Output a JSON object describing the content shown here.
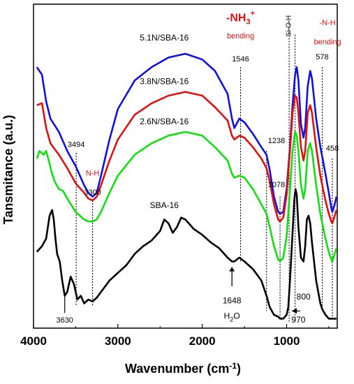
{
  "chart_data": {
    "type": "line",
    "xlabel": "Wavenumber (cm",
    "xlabel_sup": "-1",
    "xlabel_close": ")",
    "ylabel": "Tansmitance (a.u.)",
    "xlim": [
      4000,
      400
    ],
    "x_reversed": true,
    "x_ticks": [
      "4000",
      "3000",
      "2000",
      "1000"
    ],
    "x_tick_values": [
      4000,
      3000,
      2000,
      1000
    ],
    "colors": {
      "blue": "#1010e0",
      "red": "#e01010",
      "green": "#10e010",
      "black": "#000000",
      "accent": "#e01010"
    },
    "series": [
      {
        "name": "5.1N/SBA-16",
        "color": "#1010e0",
        "points": [
          [
            3960,
            82
          ],
          [
            3900,
            78
          ],
          [
            3850,
            64
          ],
          [
            3800,
            55
          ],
          [
            3700,
            48
          ],
          [
            3600,
            38
          ],
          [
            3500,
            30
          ],
          [
            3400,
            20
          ],
          [
            3350,
            16
          ],
          [
            3300,
            14
          ],
          [
            3250,
            16
          ],
          [
            3200,
            25
          ],
          [
            3100,
            44
          ],
          [
            3000,
            60
          ],
          [
            2800,
            75
          ],
          [
            2600,
            82
          ],
          [
            2400,
            87
          ],
          [
            2200,
            89
          ],
          [
            2000,
            86
          ],
          [
            1850,
            80
          ],
          [
            1700,
            68
          ],
          [
            1648,
            55
          ],
          [
            1620,
            50
          ],
          [
            1560,
            55
          ],
          [
            1500,
            53
          ],
          [
            1400,
            47
          ],
          [
            1300,
            40
          ],
          [
            1238,
            36
          ],
          [
            1200,
            28
          ],
          [
            1150,
            14
          ],
          [
            1100,
            6
          ],
          [
            1078,
            5
          ],
          [
            1040,
            6
          ],
          [
            1000,
            18
          ],
          [
            960,
            40
          ],
          [
            930,
            62
          ],
          [
            900,
            78
          ],
          [
            880,
            82
          ],
          [
            860,
            75
          ],
          [
            830,
            52
          ],
          [
            800,
            45
          ],
          [
            780,
            50
          ],
          [
            750,
            72
          ],
          [
            720,
            80
          ],
          [
            700,
            76
          ],
          [
            650,
            55
          ],
          [
            600,
            40
          ],
          [
            578,
            35
          ],
          [
            540,
            26
          ],
          [
            500,
            16
          ],
          [
            470,
            8
          ],
          [
            458,
            6
          ],
          [
            430,
            10
          ],
          [
            410,
            14
          ]
        ]
      },
      {
        "name": "3.8N/SBA-16",
        "color": "#e01010",
        "points": [
          [
            3960,
            62
          ],
          [
            3900,
            63
          ],
          [
            3850,
            50
          ],
          [
            3800,
            42
          ],
          [
            3700,
            36
          ],
          [
            3600,
            29
          ],
          [
            3500,
            21
          ],
          [
            3400,
            16
          ],
          [
            3350,
            13
          ],
          [
            3300,
            12
          ],
          [
            3250,
            14
          ],
          [
            3200,
            20
          ],
          [
            3100,
            33
          ],
          [
            3000,
            44
          ],
          [
            2800,
            57
          ],
          [
            2600,
            63
          ],
          [
            2400,
            67
          ],
          [
            2200,
            69
          ],
          [
            2000,
            67
          ],
          [
            1850,
            61
          ],
          [
            1700,
            54
          ],
          [
            1648,
            46
          ],
          [
            1620,
            44
          ],
          [
            1560,
            46
          ],
          [
            1500,
            45
          ],
          [
            1400,
            40
          ],
          [
            1300,
            34
          ],
          [
            1238,
            29
          ],
          [
            1200,
            22
          ],
          [
            1150,
            10
          ],
          [
            1100,
            2
          ],
          [
            1078,
            1
          ],
          [
            1040,
            3
          ],
          [
            1000,
            15
          ],
          [
            960,
            38
          ],
          [
            930,
            58
          ],
          [
            900,
            67
          ],
          [
            880,
            66
          ],
          [
            860,
            58
          ],
          [
            830,
            40
          ],
          [
            800,
            33
          ],
          [
            780,
            38
          ],
          [
            750,
            58
          ],
          [
            720,
            62
          ],
          [
            700,
            58
          ],
          [
            650,
            40
          ],
          [
            600,
            25
          ],
          [
            578,
            20
          ],
          [
            540,
            12
          ],
          [
            500,
            5
          ],
          [
            470,
            1
          ],
          [
            458,
            0
          ],
          [
            430,
            4
          ],
          [
            410,
            7
          ]
        ]
      },
      {
        "name": "2.6N/SBA-16",
        "color": "#10e010",
        "points": [
          [
            3960,
            34
          ],
          [
            3930,
            38
          ],
          [
            3880,
            36
          ],
          [
            3850,
            38
          ],
          [
            3820,
            33
          ],
          [
            3780,
            26
          ],
          [
            3750,
            22
          ],
          [
            3700,
            18
          ],
          [
            3650,
            17
          ],
          [
            3600,
            13
          ],
          [
            3500,
            6
          ],
          [
            3400,
            2
          ],
          [
            3350,
            1
          ],
          [
            3300,
            1
          ],
          [
            3250,
            2
          ],
          [
            3200,
            6
          ],
          [
            3100,
            16
          ],
          [
            3000,
            25
          ],
          [
            2800,
            36
          ],
          [
            2600,
            42
          ],
          [
            2400,
            46
          ],
          [
            2200,
            48
          ],
          [
            2000,
            46
          ],
          [
            1850,
            40
          ],
          [
            1700,
            33
          ],
          [
            1648,
            26
          ],
          [
            1620,
            24
          ],
          [
            1560,
            25
          ],
          [
            1500,
            24
          ],
          [
            1400,
            18
          ],
          [
            1300,
            10
          ],
          [
            1238,
            5
          ],
          [
            1200,
            -2
          ],
          [
            1150,
            -12
          ],
          [
            1100,
            -19
          ],
          [
            1078,
            -20
          ],
          [
            1040,
            -18
          ],
          [
            1000,
            -7
          ],
          [
            960,
            18
          ],
          [
            930,
            38
          ],
          [
            900,
            48
          ],
          [
            880,
            46
          ],
          [
            860,
            38
          ],
          [
            830,
            20
          ],
          [
            800,
            13
          ],
          [
            780,
            18
          ],
          [
            750,
            38
          ],
          [
            720,
            42
          ],
          [
            700,
            38
          ],
          [
            650,
            20
          ],
          [
            600,
            5
          ],
          [
            578,
            0
          ],
          [
            540,
            -8
          ],
          [
            500,
            -15
          ],
          [
            470,
            -19
          ],
          [
            458,
            -20
          ],
          [
            430,
            -16
          ],
          [
            410,
            -13
          ]
        ]
      },
      {
        "name": "SBA-16",
        "color": "#000000",
        "points": [
          [
            3960,
            -15
          ],
          [
            3900,
            -12
          ],
          [
            3850,
            -8
          ],
          [
            3810,
            4
          ],
          [
            3780,
            7
          ],
          [
            3760,
            2
          ],
          [
            3740,
            -8
          ],
          [
            3720,
            -16
          ],
          [
            3690,
            -20
          ],
          [
            3660,
            -30
          ],
          [
            3630,
            -38
          ],
          [
            3600,
            -36
          ],
          [
            3560,
            -28
          ],
          [
            3520,
            -32
          ],
          [
            3480,
            -40
          ],
          [
            3440,
            -38
          ],
          [
            3400,
            -42
          ],
          [
            3350,
            -40
          ],
          [
            3300,
            -41
          ],
          [
            3250,
            -39
          ],
          [
            3200,
            -36
          ],
          [
            3100,
            -30
          ],
          [
            3000,
            -26
          ],
          [
            2900,
            -22
          ],
          [
            2800,
            -16
          ],
          [
            2700,
            -12
          ],
          [
            2600,
            -9
          ],
          [
            2500,
            -4
          ],
          [
            2450,
            2
          ],
          [
            2400,
            0
          ],
          [
            2350,
            -5
          ],
          [
            2300,
            -2
          ],
          [
            2250,
            3
          ],
          [
            2200,
            2
          ],
          [
            2100,
            -3
          ],
          [
            2000,
            -6
          ],
          [
            1900,
            -10
          ],
          [
            1800,
            -13
          ],
          [
            1700,
            -18
          ],
          [
            1648,
            -20
          ],
          [
            1620,
            -20
          ],
          [
            1560,
            -18
          ],
          [
            1500,
            -20
          ],
          [
            1400,
            -24
          ],
          [
            1300,
            -30
          ],
          [
            1238,
            -38
          ],
          [
            1200,
            -44
          ],
          [
            1150,
            -48
          ],
          [
            1100,
            -49
          ],
          [
            1078,
            -50
          ],
          [
            1040,
            -50
          ],
          [
            1000,
            -48
          ],
          [
            980,
            -44
          ],
          [
            960,
            -30
          ],
          [
            930,
            -5
          ],
          [
            910,
            12
          ],
          [
            895,
            18
          ],
          [
            880,
            15
          ],
          [
            860,
            -2
          ],
          [
            830,
            -18
          ],
          [
            800,
            -20
          ],
          [
            780,
            -12
          ],
          [
            760,
            2
          ],
          [
            740,
            4
          ],
          [
            720,
            0
          ],
          [
            700,
            -10
          ],
          [
            650,
            -30
          ],
          [
            600,
            -42
          ],
          [
            578,
            -45
          ],
          [
            540,
            -48
          ],
          [
            500,
            -50
          ],
          [
            470,
            -50
          ],
          [
            458,
            -50
          ],
          [
            430,
            -50
          ],
          [
            410,
            -50
          ]
        ]
      }
    ],
    "series_labels": [
      {
        "text": "5.1N/SBA-16",
        "x": 2450,
        "y": 96
      },
      {
        "text": "3.8N/SBA-16",
        "x": 2450,
        "y": 73
      },
      {
        "text": "2.6N/SBA-16",
        "x": 2450,
        "y": 52
      },
      {
        "text": "SBA-16",
        "x": 2450,
        "y": 8
      }
    ],
    "ylim": [
      -55,
      115
    ],
    "vlines": [
      {
        "x": 3494,
        "top": 37,
        "bottom": -43
      },
      {
        "x": 3300,
        "top": 12,
        "bottom": -43
      },
      {
        "x": 1546,
        "top": 82,
        "bottom": -20
      },
      {
        "x": 1238,
        "top": 38,
        "bottom": -46
      },
      {
        "x": 1078,
        "top": 14,
        "bottom": -50
      },
      {
        "x": 970,
        "top": 106,
        "bottom": -52
      },
      {
        "x": 900,
        "top": 99,
        "bottom": -52
      },
      {
        "x": 578,
        "top": 82,
        "bottom": -45
      },
      {
        "x": 458,
        "top": 34,
        "bottom": -50
      }
    ],
    "annotations": [
      {
        "text": "3494",
        "x": 3494,
        "y": 40,
        "color": "#000000",
        "size": 11
      },
      {
        "text": "N-H",
        "x": 3300,
        "y": 25,
        "color": "#e01010",
        "size": 11
      },
      {
        "text": "3300",
        "x": 3300,
        "y": 15,
        "color": "#000000",
        "size": 11
      },
      {
        "text": "1546",
        "x": 1546,
        "y": 85,
        "color": "#000000",
        "size": 11
      },
      {
        "text": "1238",
        "x": 1120,
        "y": 42,
        "color": "#000000",
        "size": 11
      },
      {
        "text": "1078",
        "x": 1120,
        "y": 19,
        "color": "#000000",
        "size": 11
      },
      {
        "text": "578",
        "x": 578,
        "y": 86,
        "color": "#000000",
        "size": 11
      },
      {
        "text": "458",
        "x": 458,
        "y": 38,
        "color": "#000000",
        "size": 11
      },
      {
        "text": "3630",
        "x": 3630,
        "y": -52,
        "color": "#000000",
        "size": 11
      },
      {
        "text": "1648",
        "x": 1648,
        "y": -42,
        "color": "#000000",
        "size": 12
      },
      {
        "text": "800",
        "x": 800,
        "y": -40,
        "color": "#000000",
        "size": 12
      },
      {
        "text": "970",
        "x": 860,
        "y": -52,
        "color": "#000000",
        "size": 12
      },
      {
        "text": "bending",
        "x": 1546,
        "y": 97,
        "color": "#e01010",
        "size": 11
      },
      {
        "text": "-N-H",
        "x": 515,
        "y": 104,
        "color": "#e01010",
        "size": 11
      },
      {
        "text": "bending",
        "x": 515,
        "y": 94,
        "color": "#e01010",
        "size": 11
      }
    ],
    "nh3_label": {
      "main": "-NH",
      "sub": "3",
      "sup": "+"
    },
    "sioh_label": "Si-O-H",
    "h2o_label": {
      "main": "H",
      "sub": "2",
      "tail": "O"
    }
  }
}
